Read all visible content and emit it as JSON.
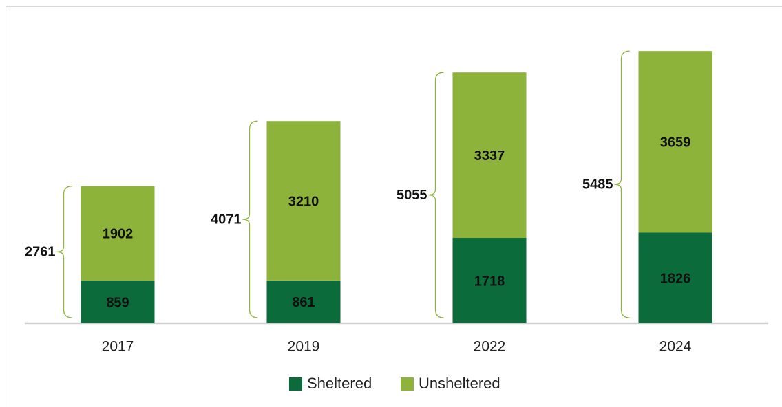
{
  "chart_data": {
    "type": "stacked_bar",
    "categories": [
      "2017",
      "2019",
      "2022",
      "2024"
    ],
    "series": [
      {
        "name": "Sheltered",
        "color": "#0b6b3a",
        "values": [
          859,
          861,
          1718,
          1826
        ]
      },
      {
        "name": "Unsheltered",
        "color": "#8db33a",
        "values": [
          1902,
          3210,
          3337,
          3659
        ]
      }
    ],
    "totals": [
      2761,
      4071,
      5055,
      5485
    ],
    "ylim": [
      0,
      6000
    ]
  }
}
